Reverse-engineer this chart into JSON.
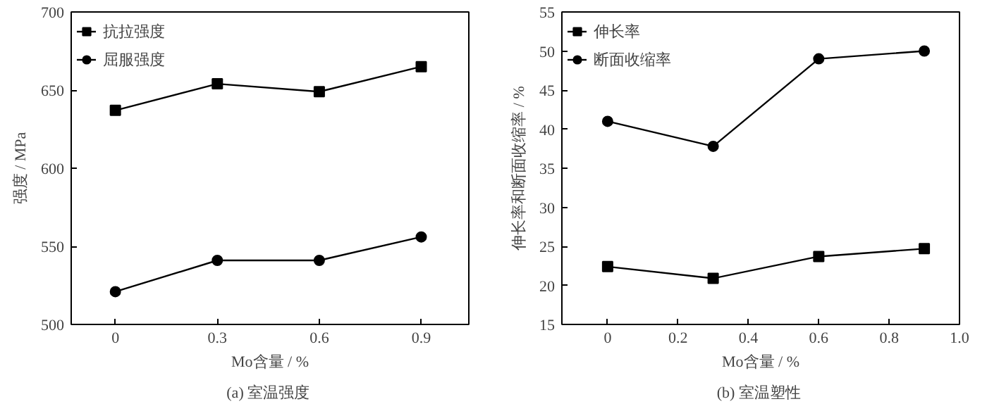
{
  "chart_data": [
    {
      "type": "line",
      "xlabel": "Mo含量 / %",
      "ylabel": "强度 / MPa",
      "annotations": [
        "(a)  室温强度"
      ],
      "x": [
        0,
        0.3,
        0.6,
        0.9
      ],
      "xlim": [
        -0.13,
        1.04
      ],
      "xticks": [
        0,
        0.3,
        0.6,
        0.9
      ],
      "ylim": [
        500,
        700
      ],
      "yticks": [
        500,
        550,
        600,
        650,
        700
      ],
      "grid": false,
      "legend": "top left",
      "line_style": "solid",
      "series": [
        {
          "name": "抗拉强度",
          "color": "#000000",
          "marker": "square",
          "values": [
            637,
            654,
            649,
            665
          ]
        },
        {
          "name": "屈服强度",
          "color": "#000000",
          "marker": "circle",
          "values": [
            521,
            541,
            541,
            556
          ]
        }
      ]
    },
    {
      "type": "line",
      "xlabel": "Mo含量 / %",
      "ylabel": "伸长率和断面收缩率 / %",
      "annotations": [
        "(b)  室温塑性"
      ],
      "x": [
        0,
        0.3,
        0.6,
        0.9
      ],
      "xlim": [
        -0.13,
        1.0
      ],
      "xticks": [
        0,
        0.2,
        0.4,
        0.6,
        0.8,
        {
          "value": 1,
          "label": "1.0"
        }
      ],
      "ylim": [
        15,
        55
      ],
      "yticks": [
        15,
        20,
        25,
        30,
        35,
        40,
        45,
        50,
        55
      ],
      "grid": false,
      "legend": "top left",
      "line_style": "solid",
      "series": [
        {
          "name": "伸长率",
          "color": "#000000",
          "marker": "square",
          "values": [
            22.4,
            20.9,
            23.7,
            24.7
          ]
        },
        {
          "name": "断面收缩率",
          "color": "#000000",
          "marker": "circle",
          "values": [
            41,
            37.8,
            49,
            50
          ]
        }
      ]
    }
  ]
}
